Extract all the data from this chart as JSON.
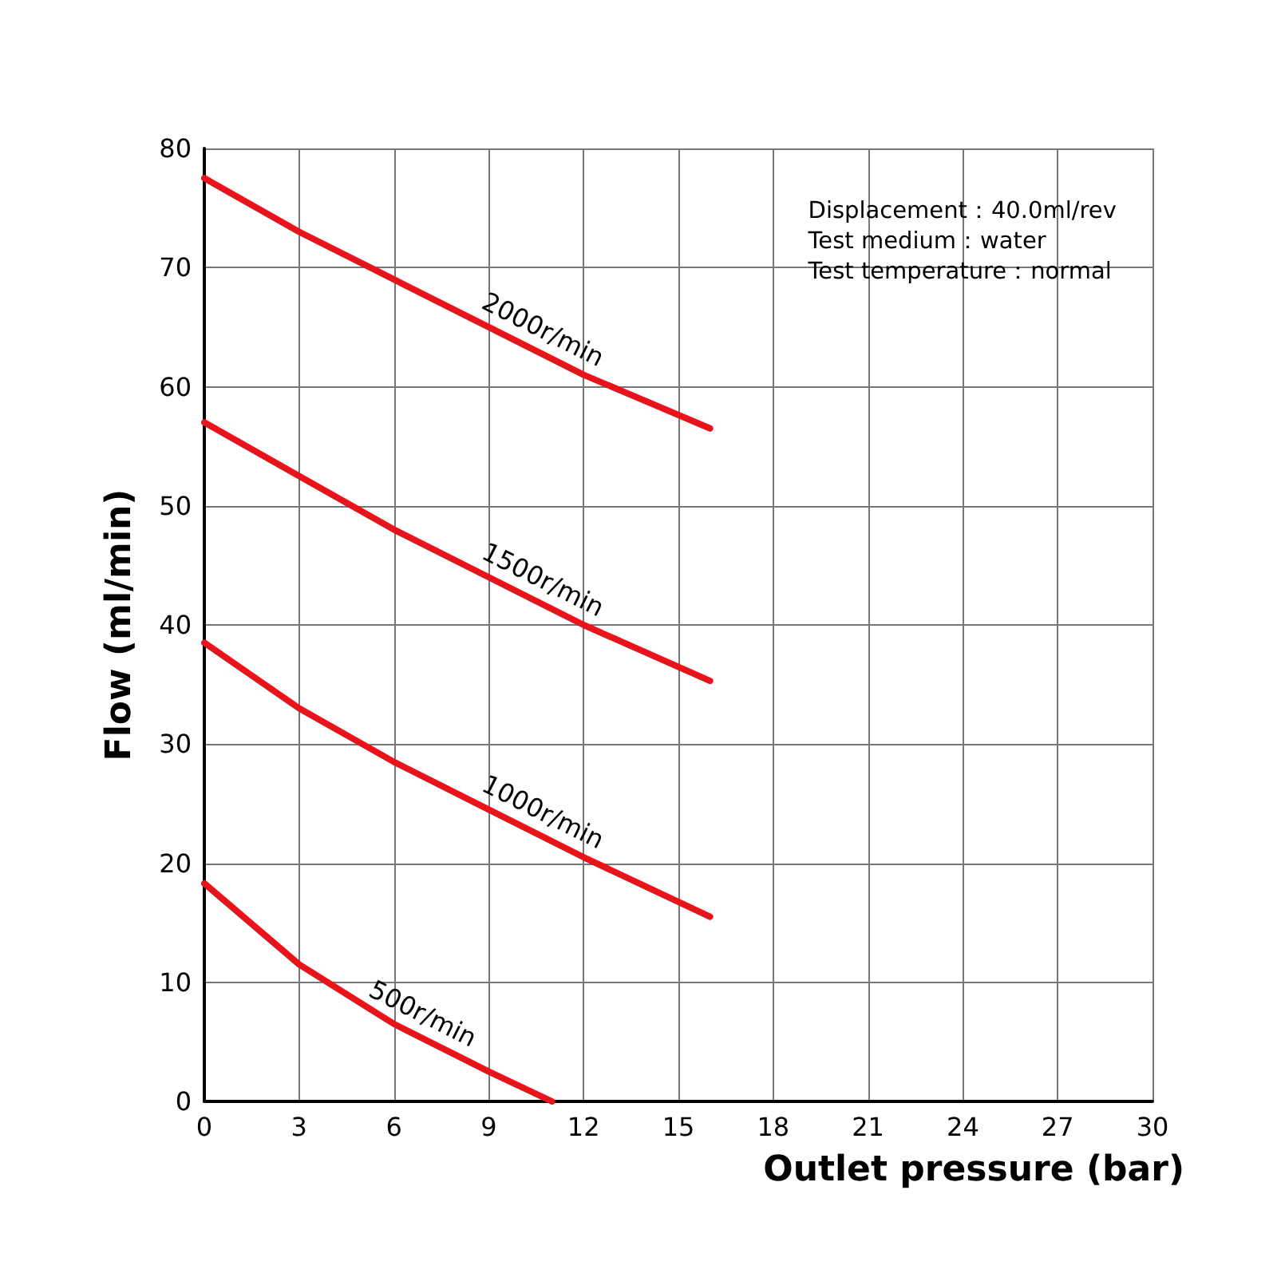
{
  "chart_data": {
    "type": "line",
    "xlabel": "Outlet pressure (bar)",
    "ylabel": "Flow (ml/min)",
    "xlim": [
      0,
      30
    ],
    "xticks": [
      0,
      3,
      6,
      9,
      12,
      15,
      18,
      21,
      24,
      27,
      30
    ],
    "ylim": [
      0,
      80
    ],
    "yticks": [
      0,
      10,
      20,
      30,
      40,
      50,
      60,
      70,
      80
    ],
    "grid": true,
    "legend": false,
    "marker": "none",
    "line_style": "solid",
    "annotations": [
      "Displacement：40.0ml/rev",
      "Test medium：water",
      "Test temperature：normal"
    ],
    "series": [
      {
        "name": "2000r/min",
        "color": "#e8141c",
        "x": [
          0,
          3,
          6,
          9,
          12,
          16
        ],
        "values": [
          77.5,
          73,
          69,
          65,
          61,
          56.5
        ]
      },
      {
        "name": "1500r/min",
        "color": "#e8141c",
        "x": [
          0,
          3,
          6,
          9,
          12,
          16
        ],
        "values": [
          57,
          52.5,
          48,
          44,
          40,
          35.3
        ]
      },
      {
        "name": "1000r/min",
        "color": "#e8141c",
        "x": [
          0,
          3,
          6,
          9,
          12,
          16
        ],
        "values": [
          38.5,
          33,
          28.5,
          24.5,
          20.5,
          15.5
        ]
      },
      {
        "name": "500r/min",
        "color": "#e8141c",
        "x": [
          0,
          3,
          6,
          9,
          11
        ],
        "values": [
          18.3,
          11.5,
          6.5,
          2.5,
          0
        ]
      }
    ]
  }
}
